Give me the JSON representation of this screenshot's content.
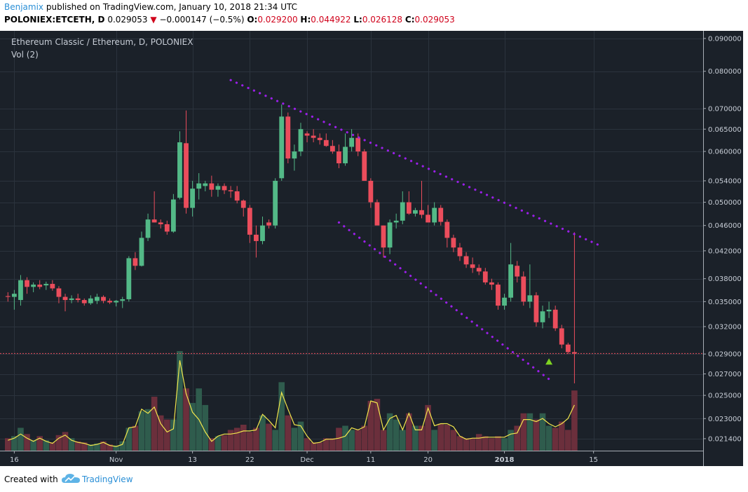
{
  "header": {
    "author": "Benjamix",
    "published_text": "published on TradingView.com, January 10, 2018 21:34 UTC",
    "symbol": "POLONIEX:ETCETH, D",
    "last": "0.029053",
    "arrow": "▼",
    "change": "−0.000147 (−0.5%)",
    "open_label": "O:",
    "open": "0.029200",
    "high_label": "H:",
    "high": "0.044922",
    "low_label": "L:",
    "low": "0.026128",
    "close_label": "C:",
    "close": "0.029053"
  },
  "legend": {
    "title": "Ethereum Classic / Ethereum, D, POLONIEX",
    "volume": "Vol (2)"
  },
  "footer": {
    "created_with": "Created with",
    "brand": "TradingView"
  },
  "colors": {
    "background": "#1b2129",
    "grid": "#2b333d",
    "up": "#53b987",
    "down": "#eb4d5c",
    "vol_up": "#2f5c4d",
    "vol_down": "#6b2f3c",
    "vol_ma": "#f2e64c",
    "trendline": "#9a1fe8",
    "last_price_line": "#eb4d5c",
    "signal": "#7ed321"
  },
  "chart_data": {
    "type": "candlestick",
    "title": "Ethereum Classic / Ethereum, D, POLONIEX",
    "y_scale": "log",
    "price_range": [
      0.0205,
      0.0925
    ],
    "price_ticks": [
      "0.090000",
      "0.080000",
      "0.070000",
      "0.065000",
      "0.060000",
      "0.054000",
      "0.050000",
      "0.046000",
      "0.042000",
      "0.038000",
      "0.035000",
      "0.032000",
      "0.029000",
      "0.027000",
      "0.025000",
      "0.023000",
      "0.021400"
    ],
    "x_labels": [
      {
        "label": "16",
        "date": "2017-10-16",
        "bold": false
      },
      {
        "label": "Nov",
        "date": "2017-11-01",
        "bold": false
      },
      {
        "label": "13",
        "date": "2017-11-13",
        "bold": false
      },
      {
        "label": "22",
        "date": "2017-11-22",
        "bold": false
      },
      {
        "label": "Dec",
        "date": "2017-12-01",
        "bold": false
      },
      {
        "label": "11",
        "date": "2017-12-11",
        "bold": false
      },
      {
        "label": "20",
        "date": "2017-12-20",
        "bold": false
      },
      {
        "label": "2018",
        "date": "2018-01-01",
        "bold": true
      },
      {
        "label": "15",
        "date": "2018-01-15",
        "bold": false
      }
    ],
    "first_date": "2017-10-15",
    "candles_ohlc": [
      [
        0.0357,
        0.0362,
        0.035,
        0.0356
      ],
      [
        0.0356,
        0.0365,
        0.034,
        0.036
      ],
      [
        0.0352,
        0.0385,
        0.0345,
        0.0378
      ],
      [
        0.0378,
        0.0382,
        0.036,
        0.0369
      ],
      [
        0.0369,
        0.0375,
        0.0362,
        0.0372
      ],
      [
        0.0372,
        0.0378,
        0.0366,
        0.0369
      ],
      [
        0.0371,
        0.0376,
        0.0365,
        0.0373
      ],
      [
        0.0373,
        0.0378,
        0.0364,
        0.0367
      ],
      [
        0.0367,
        0.037,
        0.0348,
        0.0356
      ],
      [
        0.0356,
        0.036,
        0.0338,
        0.0352
      ],
      [
        0.0352,
        0.0358,
        0.0348,
        0.0354
      ],
      [
        0.0354,
        0.036,
        0.0349,
        0.0352
      ],
      [
        0.0352,
        0.0354,
        0.0345,
        0.0348
      ],
      [
        0.0348,
        0.0358,
        0.0346,
        0.0354
      ],
      [
        0.0351,
        0.036,
        0.0347,
        0.0356
      ],
      [
        0.0356,
        0.0358,
        0.0348,
        0.0351
      ],
      [
        0.0351,
        0.0354,
        0.0347,
        0.0349
      ],
      [
        0.0349,
        0.0352,
        0.0344,
        0.0351
      ],
      [
        0.0351,
        0.0356,
        0.0342,
        0.0353
      ],
      [
        0.0353,
        0.0412,
        0.035,
        0.0409
      ],
      [
        0.0409,
        0.0418,
        0.0392,
        0.0398
      ],
      [
        0.0398,
        0.045,
        0.0397,
        0.044
      ],
      [
        0.044,
        0.048,
        0.0435,
        0.047
      ],
      [
        0.047,
        0.052,
        0.0465,
        0.0465
      ],
      [
        0.0465,
        0.047,
        0.0455,
        0.0462
      ],
      [
        0.0462,
        0.0468,
        0.0445,
        0.045
      ],
      [
        0.045,
        0.0515,
        0.0448,
        0.0505
      ],
      [
        0.0508,
        0.0645,
        0.0505,
        0.062
      ],
      [
        0.0618,
        0.0695,
        0.048,
        0.049
      ],
      [
        0.049,
        0.054,
        0.0475,
        0.0525
      ],
      [
        0.0525,
        0.0555,
        0.0505,
        0.0535
      ],
      [
        0.053,
        0.054,
        0.052,
        0.0535
      ],
      [
        0.0535,
        0.055,
        0.051,
        0.0523
      ],
      [
        0.0523,
        0.0535,
        0.051,
        0.053
      ],
      [
        0.053,
        0.0535,
        0.0515,
        0.0522
      ],
      [
        0.0522,
        0.053,
        0.0508,
        0.052
      ],
      [
        0.052,
        0.053,
        0.0498,
        0.0503
      ],
      [
        0.0503,
        0.0505,
        0.0475,
        0.049
      ],
      [
        0.049,
        0.0495,
        0.0432,
        0.0445
      ],
      [
        0.0445,
        0.046,
        0.041,
        0.0435
      ],
      [
        0.0435,
        0.0475,
        0.043,
        0.046
      ],
      [
        0.0465,
        0.047,
        0.0455,
        0.046
      ],
      [
        0.046,
        0.0545,
        0.0455,
        0.054
      ],
      [
        0.0545,
        0.071,
        0.054,
        0.068
      ],
      [
        0.068,
        0.069,
        0.0575,
        0.0585
      ],
      [
        0.0585,
        0.0615,
        0.056,
        0.06
      ],
      [
        0.06,
        0.0665,
        0.059,
        0.065
      ],
      [
        0.064,
        0.0645,
        0.062,
        0.0635
      ],
      [
        0.0635,
        0.065,
        0.062,
        0.063
      ],
      [
        0.063,
        0.064,
        0.0615,
        0.0625
      ],
      [
        0.0625,
        0.064,
        0.061,
        0.0612
      ],
      [
        0.0612,
        0.0625,
        0.0595,
        0.06
      ],
      [
        0.06,
        0.0615,
        0.0565,
        0.0575
      ],
      [
        0.0575,
        0.064,
        0.057,
        0.061
      ],
      [
        0.061,
        0.065,
        0.06,
        0.063
      ],
      [
        0.063,
        0.064,
        0.059,
        0.06
      ],
      [
        0.06,
        0.0605,
        0.055,
        0.054
      ],
      [
        0.054,
        0.0545,
        0.049,
        0.05
      ],
      [
        0.05,
        0.0505,
        0.047,
        0.046
      ],
      [
        0.046,
        0.046,
        0.041,
        0.0425
      ],
      [
        0.0425,
        0.047,
        0.0415,
        0.0465
      ],
      [
        0.0465,
        0.048,
        0.0455,
        0.0468
      ],
      [
        0.0468,
        0.052,
        0.0462,
        0.05
      ],
      [
        0.05,
        0.052,
        0.0478,
        0.048
      ],
      [
        0.048,
        0.049,
        0.0475,
        0.0486
      ],
      [
        0.0486,
        0.054,
        0.0472,
        0.0478
      ],
      [
        0.0478,
        0.0495,
        0.0465,
        0.0465
      ],
      [
        0.0465,
        0.05,
        0.046,
        0.049
      ],
      [
        0.049,
        0.0495,
        0.046,
        0.0466
      ],
      [
        0.0466,
        0.047,
        0.0425,
        0.044
      ],
      [
        0.044,
        0.0445,
        0.0418,
        0.0425
      ],
      [
        0.0425,
        0.0432,
        0.0405,
        0.0412
      ],
      [
        0.0412,
        0.0418,
        0.0395,
        0.04
      ],
      [
        0.04,
        0.041,
        0.0388,
        0.0395
      ],
      [
        0.0395,
        0.04,
        0.0385,
        0.039
      ],
      [
        0.039,
        0.0395,
        0.0372,
        0.0375
      ],
      [
        0.0375,
        0.038,
        0.0365,
        0.0372
      ],
      [
        0.0372,
        0.0375,
        0.034,
        0.0345
      ],
      [
        0.0345,
        0.036,
        0.034,
        0.0355
      ],
      [
        0.0355,
        0.0432,
        0.035,
        0.04
      ],
      [
        0.0398,
        0.0405,
        0.0375,
        0.0383
      ],
      [
        0.0383,
        0.039,
        0.0345,
        0.035
      ],
      [
        0.035,
        0.04,
        0.0342,
        0.0358
      ],
      [
        0.0358,
        0.0362,
        0.032,
        0.0325
      ],
      [
        0.0325,
        0.0345,
        0.0318,
        0.0338
      ],
      [
        0.0338,
        0.035,
        0.033,
        0.034
      ],
      [
        0.034,
        0.0345,
        0.0315,
        0.0318
      ],
      [
        0.0318,
        0.0322,
        0.0296,
        0.03
      ],
      [
        0.03,
        0.0302,
        0.029,
        0.0292
      ],
      [
        0.0292,
        0.0449,
        0.0261,
        0.02905
      ]
    ],
    "volume_scale_max": 100,
    "volume": [
      12,
      14,
      22,
      16,
      10,
      14,
      10,
      8,
      15,
      18,
      12,
      9,
      8,
      6,
      7,
      9,
      6,
      5,
      9,
      22,
      24,
      38,
      40,
      52,
      34,
      30,
      30,
      96,
      60,
      46,
      60,
      44,
      12,
      14,
      15,
      20,
      22,
      25,
      18,
      22,
      34,
      26,
      20,
      66,
      34,
      22,
      28,
      12,
      8,
      8,
      12,
      12,
      22,
      24,
      20,
      20,
      24,
      48,
      50,
      20,
      36,
      30,
      20,
      36,
      24,
      24,
      44,
      20,
      26,
      25,
      20,
      14,
      12,
      12,
      16,
      14,
      12,
      14,
      12,
      20,
      24,
      36,
      36,
      30,
      36,
      24,
      22,
      28,
      20,
      58
    ],
    "volume_ma": [
      10,
      12,
      16,
      12,
      9,
      12,
      9,
      7,
      12,
      15,
      10,
      8,
      7,
      5,
      6,
      8,
      5,
      4,
      6,
      22,
      23,
      40,
      36,
      42,
      26,
      18,
      21,
      87,
      55,
      37,
      30,
      18,
      9,
      14,
      16,
      16,
      17,
      19,
      19,
      20,
      35,
      29,
      22,
      56,
      40,
      25,
      24,
      14,
      7,
      8,
      11,
      11,
      12,
      14,
      22,
      20,
      23,
      48,
      46,
      20,
      31,
      34,
      20,
      36,
      20,
      20,
      41,
      24,
      26,
      26,
      23,
      14,
      11,
      12,
      12,
      13,
      13,
      13,
      13,
      16,
      17,
      30,
      30,
      28,
      31,
      26,
      23,
      26,
      31,
      44
    ],
    "trendlines": [
      {
        "from": {
          "date": "2017-11-19",
          "price": 0.0775
        },
        "to": {
          "date": "2018-01-16",
          "price": 0.0428
        }
      },
      {
        "from": {
          "date": "2017-12-06",
          "price": 0.0465
        },
        "to": {
          "date": "2018-01-08",
          "price": 0.0265
        }
      }
    ],
    "last_price": 0.02905,
    "signal_marker": {
      "date": "2018-01-08",
      "price": 0.0282
    }
  }
}
